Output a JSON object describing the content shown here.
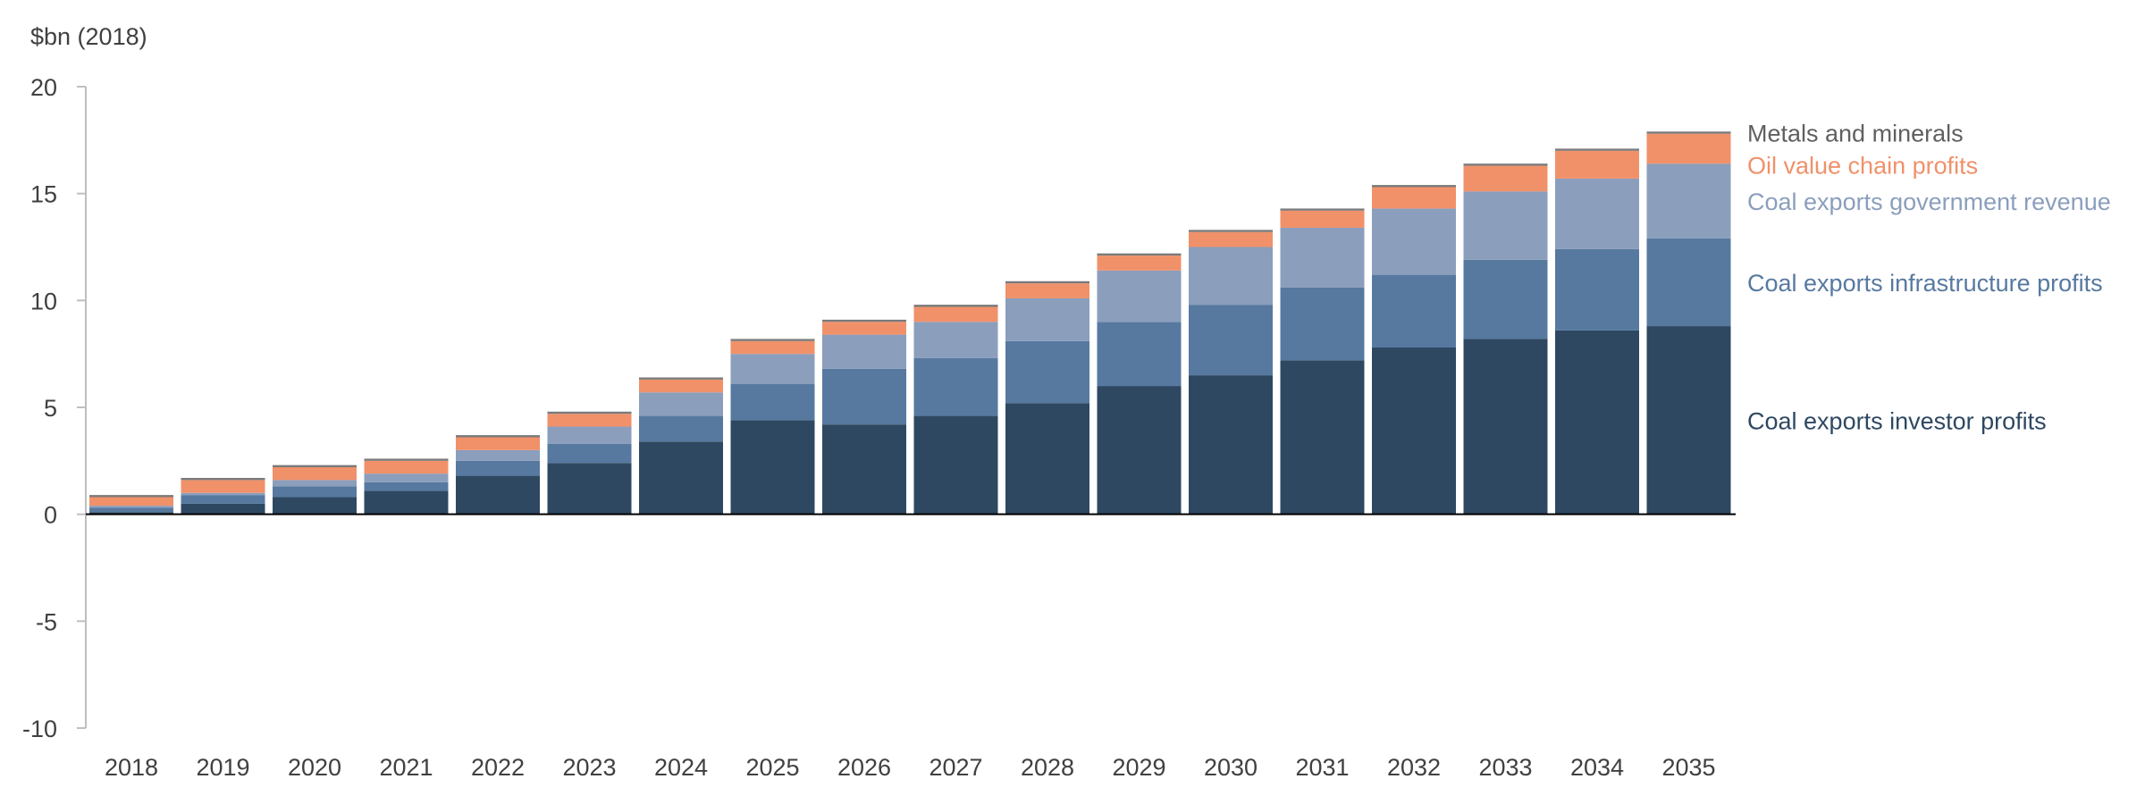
{
  "chart_data": {
    "type": "bar",
    "stacked": true,
    "unit_label": "$bn (2018)",
    "ylim": [
      -10,
      20
    ],
    "yticks": [
      20,
      15,
      10,
      5,
      0,
      -5,
      -10
    ],
    "grid": false,
    "legend_placement": "right, labels aligned with bar segments",
    "categories": [
      "2018",
      "2019",
      "2020",
      "2021",
      "2022",
      "2023",
      "2024",
      "2025",
      "2026",
      "2027",
      "2028",
      "2029",
      "2030",
      "2031",
      "2032",
      "2033",
      "2034",
      "2035"
    ],
    "series": [
      {
        "name": "Coal exports investor profits",
        "color": "#2e4861",
        "values": [
          0.1,
          0.5,
          0.8,
          1.1,
          1.8,
          2.4,
          3.4,
          4.4,
          4.2,
          4.6,
          5.2,
          6.0,
          6.5,
          7.2,
          7.8,
          8.2,
          8.6,
          8.8
        ]
      },
      {
        "name": "Coal exports infrastructure profits",
        "color": "#5779a0",
        "values": [
          0.2,
          0.4,
          0.5,
          0.4,
          0.7,
          0.9,
          1.2,
          1.7,
          2.6,
          2.7,
          2.9,
          3.0,
          3.3,
          3.4,
          3.4,
          3.7,
          3.8,
          4.1
        ]
      },
      {
        "name": "Coal exports government revenue",
        "color": "#8b9ebc",
        "values": [
          0.1,
          0.1,
          0.3,
          0.4,
          0.5,
          0.8,
          1.1,
          1.4,
          1.6,
          1.7,
          2.0,
          2.4,
          2.7,
          2.8,
          3.1,
          3.2,
          3.3,
          3.5
        ]
      },
      {
        "name": "Oil value chain profits",
        "color": "#f0916a",
        "values": [
          0.4,
          0.6,
          0.6,
          0.6,
          0.6,
          0.6,
          0.6,
          0.6,
          0.6,
          0.7,
          0.7,
          0.7,
          0.7,
          0.8,
          1.0,
          1.2,
          1.3,
          1.4
        ]
      },
      {
        "name": "Metals and minerals",
        "color": "#7a7a7a",
        "values": [
          0.1,
          0.1,
          0.1,
          0.1,
          0.1,
          0.1,
          0.1,
          0.1,
          0.1,
          0.1,
          0.1,
          0.1,
          0.1,
          0.1,
          0.1,
          0.1,
          0.1,
          0.1
        ]
      }
    ]
  }
}
